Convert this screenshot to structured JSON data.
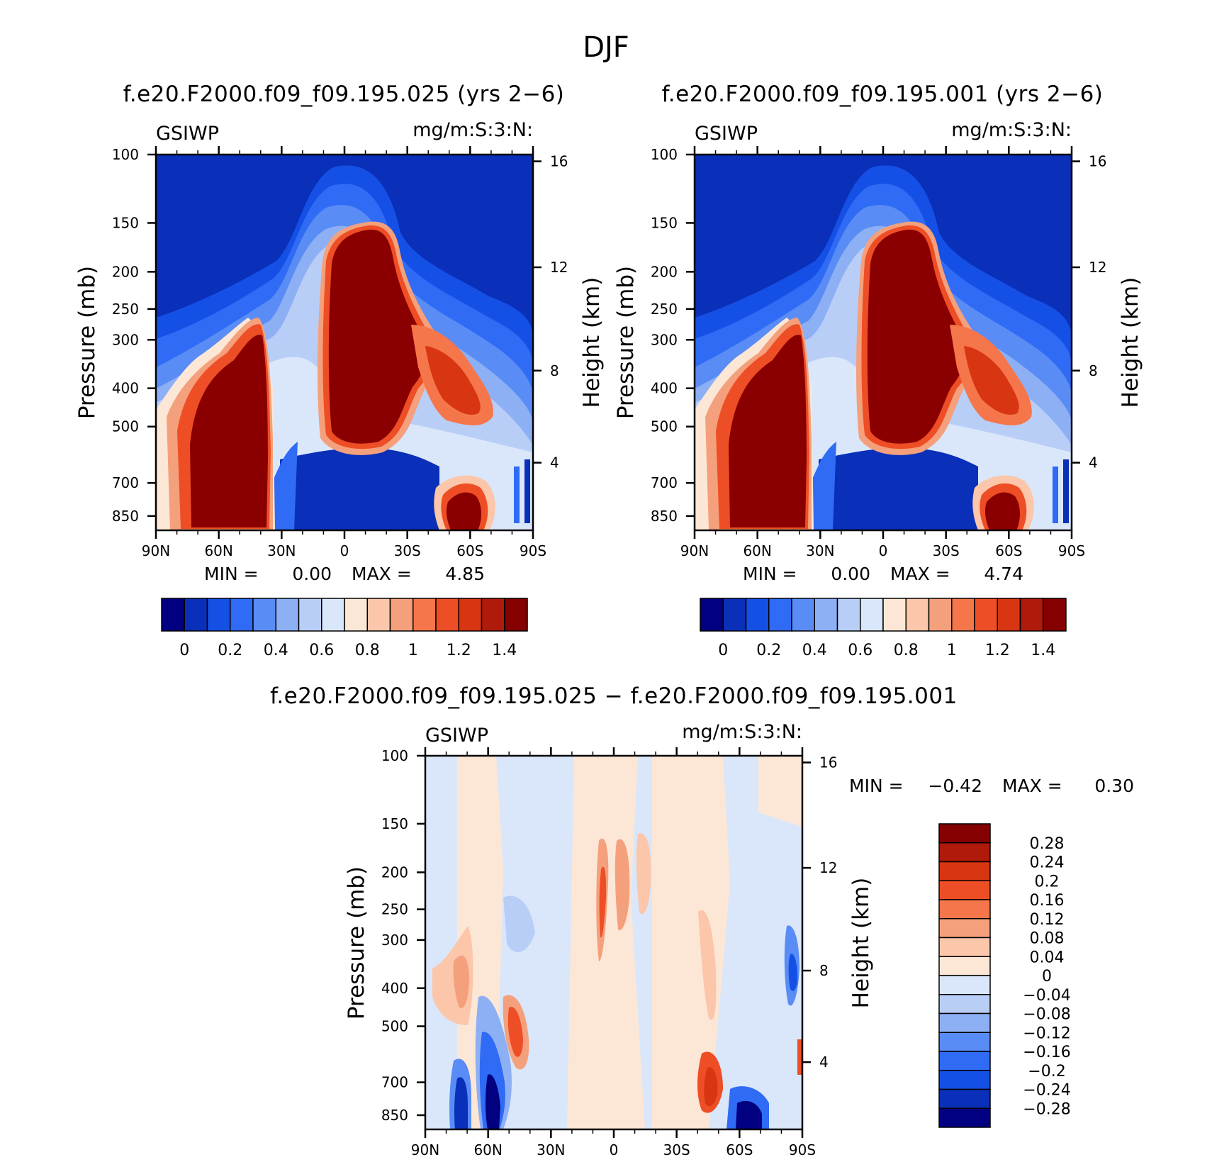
{
  "chart_data": {
    "type": "heatmap",
    "title": "DJF",
    "variable": "GSIWP",
    "units": "mg/m:S:3:N:",
    "x_ticks": [
      "90N",
      "60N",
      "30N",
      "0",
      "30S",
      "60S",
      "90S"
    ],
    "y_left_label": "Pressure (mb)",
    "y_left_ticks": [
      "100",
      "150",
      "200",
      "250",
      "300",
      "400",
      "500",
      "700",
      "850"
    ],
    "y_right_label": "Height (km)",
    "y_right_ticks": [
      "16",
      "12",
      "8",
      "4"
    ],
    "panels": [
      {
        "id": "case1",
        "title": "f.e20.F2000.f09_f09.195.025 (yrs 2−6)",
        "min_label": "MIN =",
        "min_value": "0.00",
        "max_label": "MAX =",
        "max_value": "4.85"
      },
      {
        "id": "case2",
        "title": "f.e20.F2000.f09_f09.195.001 (yrs 2−6)",
        "min_label": "MIN =",
        "min_value": "0.00",
        "max_label": "MAX =",
        "max_value": "4.74"
      },
      {
        "id": "difference",
        "title": "f.e20.F2000.f09_f09.195.025 − f.e20.F2000.f09_f09.195.001",
        "min_label": "MIN =",
        "min_value": "−0.42",
        "max_label": "MAX =",
        "max_value": "0.30"
      }
    ],
    "colorbar_main": {
      "colors": [
        "#000080",
        "#0A2FB8",
        "#1550E6",
        "#2F6BF5",
        "#5A8CF5",
        "#8DB0F5",
        "#B9CEF7",
        "#DAE7FA",
        "#FCE7D6",
        "#FBC6AA",
        "#F5A07C",
        "#F5764B",
        "#EE4E25",
        "#D83512",
        "#B01A0A",
        "#850000"
      ],
      "ticks": [
        "0",
        "0.2",
        "0.4",
        "0.6",
        "0.8",
        "1",
        "1.2",
        "1.4"
      ]
    },
    "colorbar_diff": {
      "colors": [
        "#850000",
        "#B01A0A",
        "#D83512",
        "#EE4E25",
        "#F5764B",
        "#F5A07C",
        "#FBC6AA",
        "#FCE7D6",
        "#DAE7FA",
        "#B9CEF7",
        "#8DB0F5",
        "#5A8CF5",
        "#2F6BF5",
        "#1550E6",
        "#0A2FB8",
        "#000080"
      ],
      "ticks": [
        "0.28",
        "0.24",
        "0.2",
        "0.16",
        "0.12",
        "0.08",
        "0.04",
        "0",
        "−0.04",
        "−0.08",
        "−0.12",
        "−0.16",
        "−0.2",
        "−0.24",
        "−0.28"
      ]
    }
  }
}
